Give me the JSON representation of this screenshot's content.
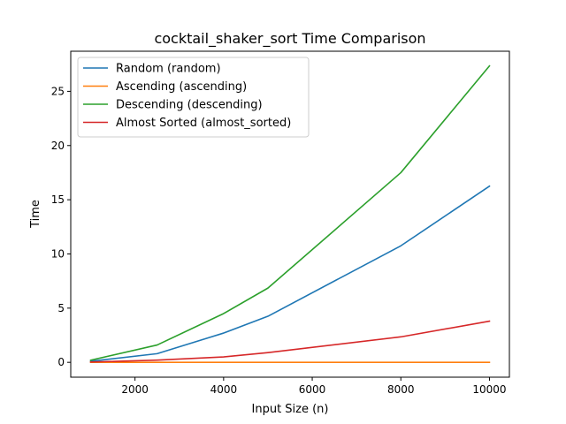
{
  "chart_data": {
    "type": "line",
    "title": "cocktail_shaker_sort Time Comparison",
    "xlabel": "Input Size (n)",
    "ylabel": "Time",
    "x": [
      1000,
      2500,
      4000,
      5000,
      8000,
      10000
    ],
    "xlim": [
      550,
      10450
    ],
    "ylim": [
      -1.37,
      28.7
    ],
    "xticks": [
      2000,
      4000,
      6000,
      8000,
      10000
    ],
    "yticks": [
      0,
      5,
      10,
      15,
      20,
      25
    ],
    "grid": false,
    "legend_position": "top-left",
    "series": [
      {
        "name": "Random (random)",
        "color": "#1f77b4",
        "values": [
          0.1,
          0.8,
          2.7,
          4.25,
          10.75,
          16.25
        ]
      },
      {
        "name": "Ascending (ascending)",
        "color": "#ff7f0e",
        "values": [
          0.0,
          0.0,
          0.0,
          0.0,
          0.0,
          0.0
        ]
      },
      {
        "name": "Descending (descending)",
        "color": "#2ca02c",
        "values": [
          0.2,
          1.6,
          4.5,
          6.85,
          17.5,
          27.35
        ]
      },
      {
        "name": "Almost Sorted (almost_sorted)",
        "color": "#d62728",
        "values": [
          0.03,
          0.2,
          0.5,
          0.9,
          2.35,
          3.8
        ]
      }
    ]
  }
}
